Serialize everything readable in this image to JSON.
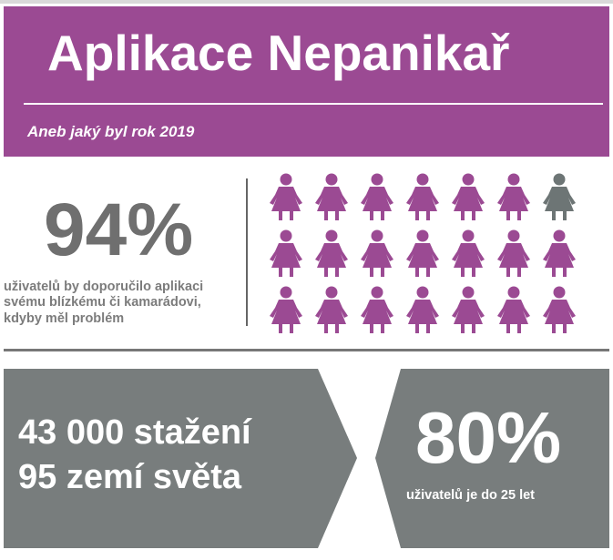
{
  "header": {
    "title": "Aplikace Nepanikař",
    "subtitle": "Aneb jaký byl rok 2019"
  },
  "recommend": {
    "percent": "94%",
    "text": "uživatelů by doporučilo aplikaci svému blízkému či kamarádovi, kdyby měl problém",
    "pictogram": {
      "rows": 3,
      "columns": 7,
      "highlighted_count": 20,
      "highlight_color": "#9b4a93",
      "other_color": "#6d7575",
      "icon": "person-icon"
    }
  },
  "downloads": {
    "line1": "43 000 stažení",
    "line2": "95 zemí světa"
  },
  "age": {
    "percent": "80%",
    "text": "uživatelů je do 25 let"
  },
  "colors": {
    "accent": "#9b4a93",
    "panel": "#787d7d",
    "percent_text": "#6f6f6f",
    "divider": "#777777"
  }
}
